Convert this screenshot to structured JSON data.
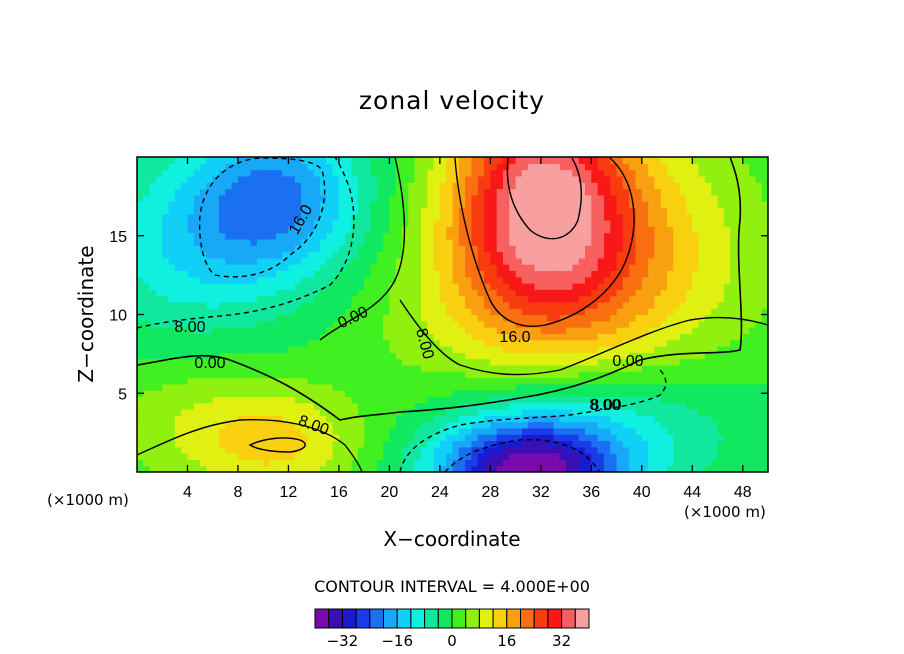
{
  "chart_data": {
    "type": "heatmap",
    "title": "zonal velocity",
    "xlabel": "X−coordinate",
    "ylabel": "Z−coordinate",
    "x_unit": "(×1000 m)",
    "y_unit": "(×1000 m)",
    "xlim": [
      0,
      50
    ],
    "ylim": [
      0,
      20
    ],
    "xticks": [
      4,
      8,
      12,
      16,
      20,
      24,
      28,
      32,
      36,
      40,
      44,
      48
    ],
    "yticks": [
      5,
      10,
      15
    ],
    "contour_interval_label": "CONTOUR INTERVAL = 4.000E+00",
    "contour_labels": [
      "16.0",
      "8.00",
      "0.00",
      "8.00",
      "0.00",
      "8.00",
      "16.0",
      "8.00",
      "0.00",
      "8.00"
    ],
    "colorbar": {
      "levels": [
        -36,
        -32,
        -28,
        -24,
        -20,
        -16,
        -12,
        -8,
        -4,
        0,
        4,
        8,
        12,
        16,
        20,
        24,
        28,
        32,
        36
      ],
      "tick_values": [
        -32,
        -16,
        0,
        16,
        32
      ],
      "tick_labels": [
        "−32",
        "−16",
        "0",
        "16",
        "32"
      ]
    },
    "features": [
      {
        "x": 32,
        "z": 0.4,
        "value": -34,
        "note": "strong negative core near surface"
      },
      {
        "x": 11,
        "z": 17,
        "value": -18,
        "note": "negative core upper left"
      },
      {
        "x": 32,
        "z": 18,
        "value": 30,
        "note": "strong positive core upper middle"
      },
      {
        "x": 10,
        "z": 2,
        "value": 13,
        "note": "positive lower left"
      },
      {
        "x": 46,
        "z": 12,
        "value": 0,
        "note": "near zero right side"
      }
    ]
  }
}
